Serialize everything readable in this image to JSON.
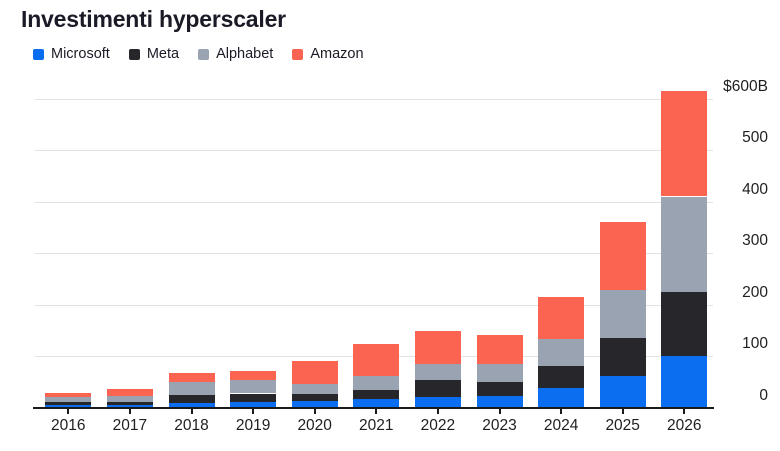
{
  "title": "Investimenti hyperscaler",
  "legend": {
    "items": [
      {
        "label": "Microsoft",
        "color": "#0b6df0"
      },
      {
        "label": "Meta",
        "color": "#26262b"
      },
      {
        "label": "Alphabet",
        "color": "#9aa3b1"
      },
      {
        "label": "Amazon",
        "color": "#fa6450"
      }
    ]
  },
  "y_axis": {
    "ticks": [
      {
        "label": "$600B",
        "value": 600
      },
      {
        "label": "500",
        "value": 500
      },
      {
        "label": "400",
        "value": 400
      },
      {
        "label": "300",
        "value": 300
      },
      {
        "label": "200",
        "value": 200
      },
      {
        "label": "100",
        "value": 100
      },
      {
        "label": "0",
        "value": 0
      }
    ]
  },
  "chart_data": {
    "type": "bar",
    "stacked": true,
    "title": "Investimenti hyperscaler",
    "categories": [
      "2016",
      "2017",
      "2018",
      "2019",
      "2020",
      "2021",
      "2022",
      "2023",
      "2024",
      "2025",
      "2026"
    ],
    "series": [
      {
        "name": "Microsoft",
        "color": "#0b6df0",
        "values": [
          6,
          5,
          9,
          11,
          13,
          18,
          22,
          23,
          38,
          62,
          100
        ]
      },
      {
        "name": "Meta",
        "color": "#26262b",
        "values": [
          6,
          6,
          16,
          17,
          14,
          17,
          32,
          28,
          43,
          73,
          125
        ]
      },
      {
        "name": "Alphabet",
        "color": "#9aa3b1",
        "values": [
          9,
          12,
          25,
          26,
          20,
          27,
          32,
          35,
          52,
          93,
          185
        ]
      },
      {
        "name": "Amazon",
        "color": "#fa6450",
        "values": [
          8,
          14,
          17,
          17,
          44,
          62,
          63,
          55,
          82,
          132,
          205
        ]
      }
    ],
    "totals": [
      29,
      37,
      67,
      71,
      91,
      124,
      149,
      141,
      215,
      360,
      615
    ],
    "xlabel": "",
    "ylabel": "$600B",
    "ylim": [
      0,
      620
    ],
    "grid_step": 100,
    "grid": true,
    "legend_position": "top-left",
    "y_labels_side": "right"
  }
}
